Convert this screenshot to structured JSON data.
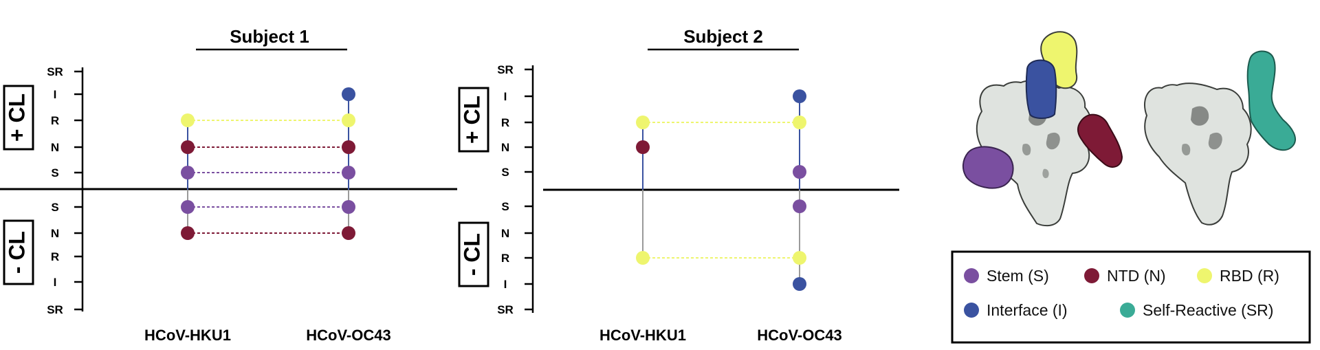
{
  "colors": {
    "stem": "#7a4fa0",
    "ntd": "#7e1a36",
    "rbd": "#eef56e",
    "interface": "#3a52a0",
    "self_reactive": "#3aab96",
    "protein": "#dfe3df"
  },
  "axis_levels_top": [
    "SR",
    "I",
    "R",
    "N",
    "S"
  ],
  "axis_levels_bottom": [
    "S",
    "N",
    "R",
    "I",
    "SR"
  ],
  "condition_labels": {
    "plus": "+ CL",
    "minus": "- CL"
  },
  "panels": [
    {
      "title": "Subject 1",
      "viruses": [
        "HCoV-HKU1",
        "HCoV-OC43"
      ],
      "plus_cl": {
        "HCoV-HKU1": [
          "R",
          "N",
          "S"
        ],
        "HCoV-OC43": [
          "I",
          "R",
          "N",
          "S"
        ]
      },
      "minus_cl": {
        "HCoV-HKU1": [
          "S",
          "N"
        ],
        "HCoV-OC43": [
          "S",
          "N"
        ]
      },
      "links_plus": [
        "R",
        "N",
        "S"
      ],
      "links_minus": [
        "S",
        "N"
      ]
    },
    {
      "title": "Subject 2",
      "viruses": [
        "HCoV-HKU1",
        "HCoV-OC43"
      ],
      "plus_cl": {
        "HCoV-HKU1": [
          "R",
          "N"
        ],
        "HCoV-OC43": [
          "I",
          "R",
          "S"
        ]
      },
      "minus_cl": {
        "HCoV-HKU1": [
          "R"
        ],
        "HCoV-OC43": [
          "S",
          "R",
          "I"
        ]
      },
      "links_plus": [
        "R"
      ],
      "links_minus": [
        "R"
      ]
    }
  ],
  "legend": {
    "items": [
      {
        "label": "Stem (S)",
        "color_key": "stem"
      },
      {
        "label": "NTD (N)",
        "color_key": "ntd"
      },
      {
        "label": "RBD (R)",
        "color_key": "rbd"
      },
      {
        "label": "Interface (I)",
        "color_key": "interface"
      },
      {
        "label": "Self-Reactive (SR)",
        "color_key": "self_reactive"
      }
    ]
  }
}
